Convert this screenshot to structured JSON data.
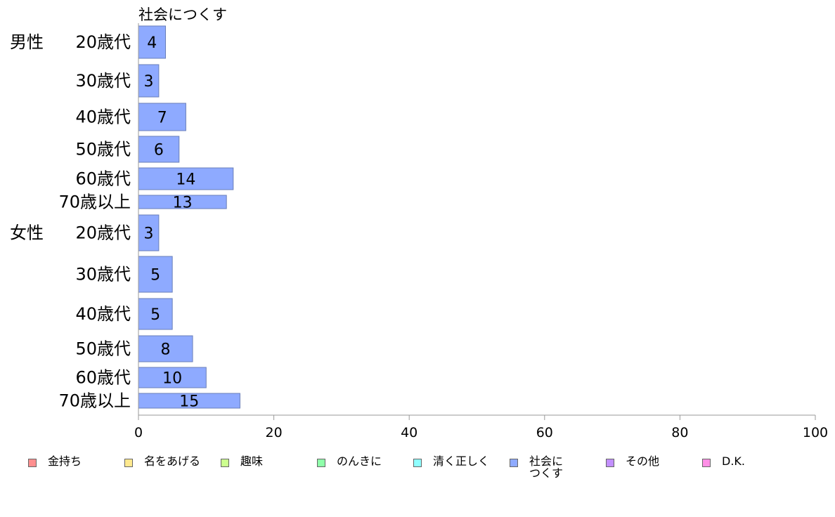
{
  "chart_data": {
    "type": "bar",
    "orientation": "horizontal",
    "title": "社会につくす",
    "groups": [
      {
        "name": "男性",
        "categories": [
          "20歳代",
          "30歳代",
          "40歳代",
          "50歳代",
          "60歳代",
          "70歳以上"
        ],
        "values": [
          4,
          3,
          7,
          6,
          14,
          13
        ]
      },
      {
        "name": "女性",
        "categories": [
          "20歳代",
          "30歳代",
          "40歳代",
          "50歳代",
          "60歳代",
          "70歳以上"
        ],
        "values": [
          3,
          5,
          5,
          8,
          10,
          15
        ]
      }
    ],
    "xlim": [
      0,
      100
    ],
    "xticks": [
      "0",
      "20",
      "40",
      "60",
      "80",
      "100"
    ],
    "bar_color": "#8eaaff",
    "grid": false,
    "legend": {
      "placement": "bottom",
      "entries": [
        {
          "label": "金持ち",
          "color": "#ff8f8f"
        },
        {
          "label": "名をあげる",
          "color": "#ffe98f"
        },
        {
          "label": "趣味",
          "color": "#ccff8f"
        },
        {
          "label": "のんきに",
          "color": "#8fffaa"
        },
        {
          "label": "清く正しく",
          "color": "#8fffff"
        },
        {
          "label": "社会に\nつくす",
          "color": "#8eaaff"
        },
        {
          "label": "その他",
          "color": "#c28fff"
        },
        {
          "label": "D.K.",
          "color": "#ff8fe6"
        }
      ]
    }
  }
}
